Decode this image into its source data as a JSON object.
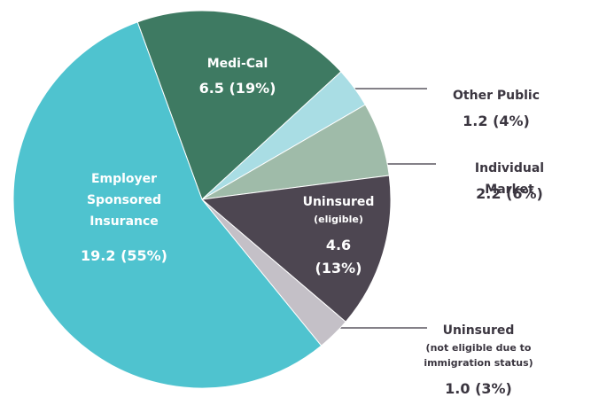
{
  "chart_data": {
    "type": "pie",
    "categories": [
      "Medi-Cal",
      "Other Public",
      "Individual Market",
      "Uninsured",
      "Uninsured",
      "Employer Sponsored Insurance"
    ],
    "notes": [
      null,
      null,
      null,
      "(eligible)",
      "(not eligible due to immigration status)",
      null
    ],
    "values": [
      6.5,
      1.2,
      2.2,
      4.6,
      1.0,
      19.2
    ],
    "value_labels": [
      "6.5 (19%)",
      "1.2 (4%)",
      "2.2 (6%)",
      "4.6 (13%)",
      "1.0 (3%)",
      "19.2 (55%)"
    ],
    "colors": [
      "#3e7a62",
      "#a9dde4",
      "#9fbba9",
      "#4d4651",
      "#c4c0c7",
      "#4fc3cf"
    ]
  }
}
